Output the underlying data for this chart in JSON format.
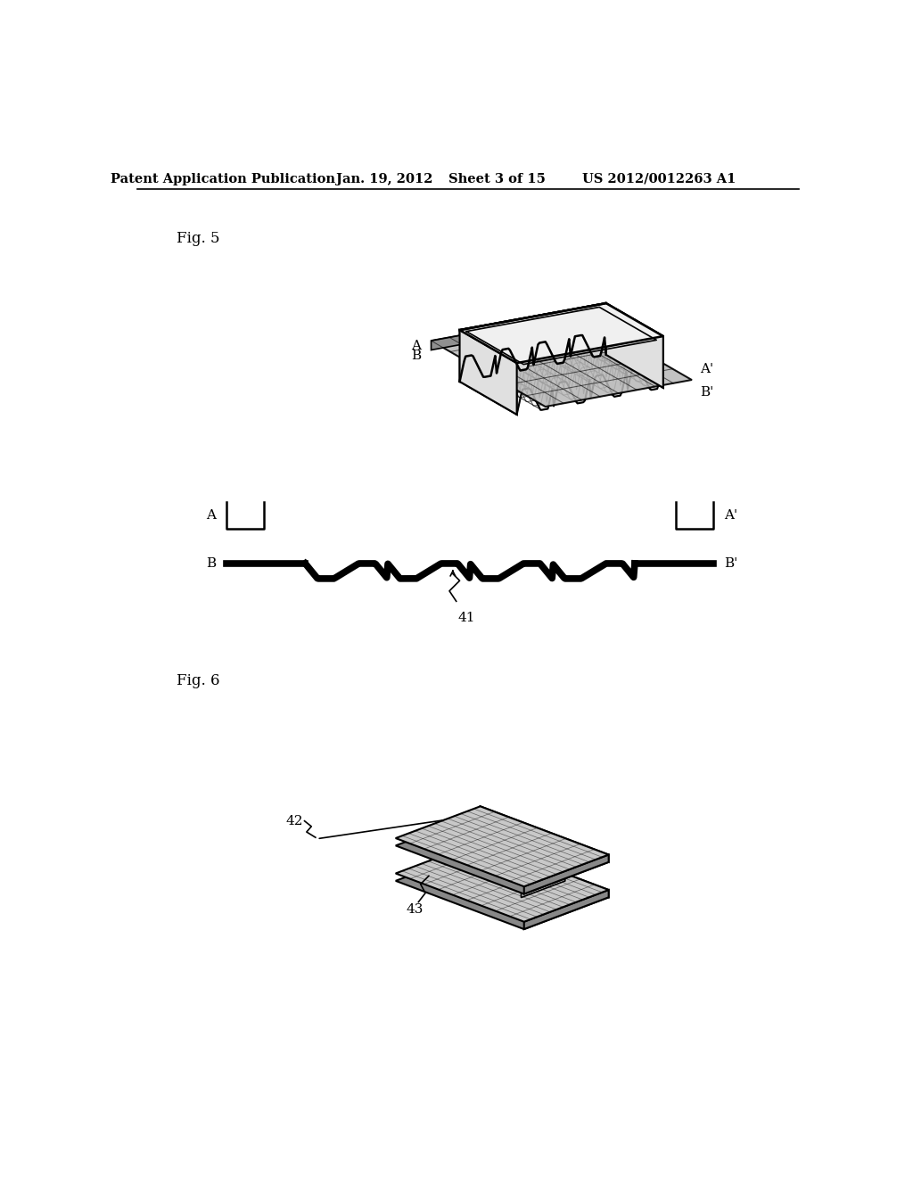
{
  "bg_color": "#ffffff",
  "header_text": "Patent Application Publication",
  "header_date": "Jan. 19, 2012",
  "header_sheet": "Sheet 3 of 15",
  "header_patent": "US 2012/0012263 A1",
  "fig5_label": "Fig. 5",
  "fig6_label": "Fig. 6",
  "label_41": "41",
  "label_42": "42",
  "label_43": "43"
}
